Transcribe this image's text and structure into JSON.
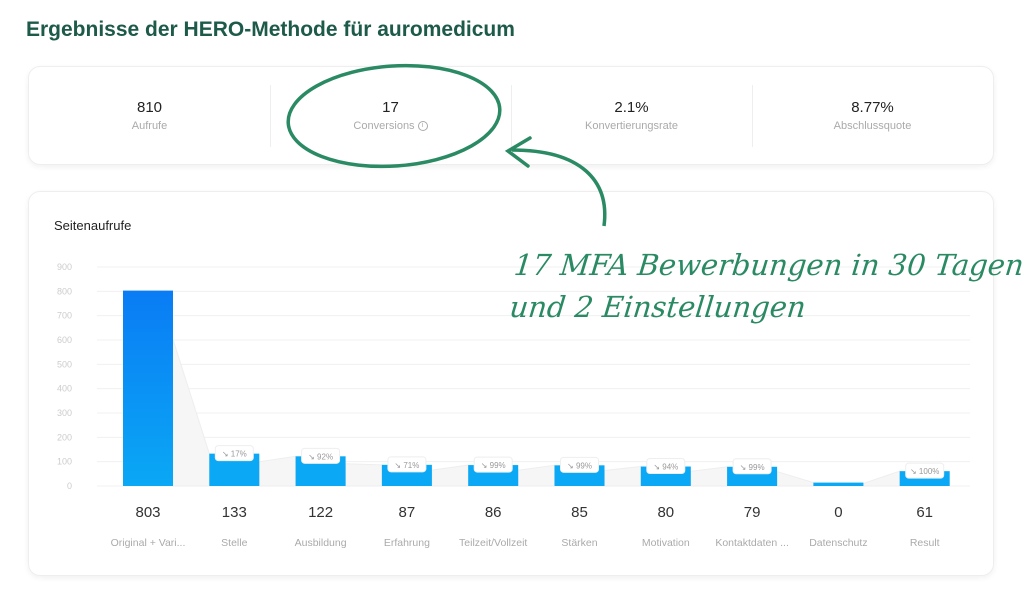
{
  "title": "Ergebnisse der HERO-Methode für auromedicum",
  "kpis": [
    {
      "value": "810",
      "label": "Aufrufe"
    },
    {
      "value": "17",
      "label": "Conversions",
      "info_icon": "info-icon"
    },
    {
      "value": "2.1%",
      "label": "Konvertierungsrate"
    },
    {
      "value": "8.77%",
      "label": "Abschlussquote"
    }
  ],
  "annotation": {
    "line1": "17 MFA Bewerbungen in 30 Tagen",
    "line2": "und 2 Einstellungen",
    "color": "#2a8a63"
  },
  "chart_data": {
    "type": "bar",
    "title": "Seitenaufrufe",
    "categories": [
      "Original + Vari...",
      "Stelle",
      "Ausbildung",
      "Erfahrung",
      "Teilzeit/Vollzeit",
      "Stärken",
      "Motivation",
      "Kontaktdaten ...",
      "Datenschutz",
      "Result"
    ],
    "values": [
      803,
      133,
      122,
      87,
      86,
      85,
      80,
      79,
      0,
      61
    ],
    "dropoff_labels": [
      "",
      "17%",
      "92%",
      "71%",
      "99%",
      "99%",
      "94%",
      "99%",
      "",
      "100%"
    ],
    "yticks": [
      0,
      100,
      200,
      300,
      400,
      500,
      600,
      700,
      800,
      900
    ],
    "ylim": [
      0,
      900
    ],
    "grid": true,
    "color_top": "#0a7cf5",
    "color": "#0aa8f5"
  }
}
